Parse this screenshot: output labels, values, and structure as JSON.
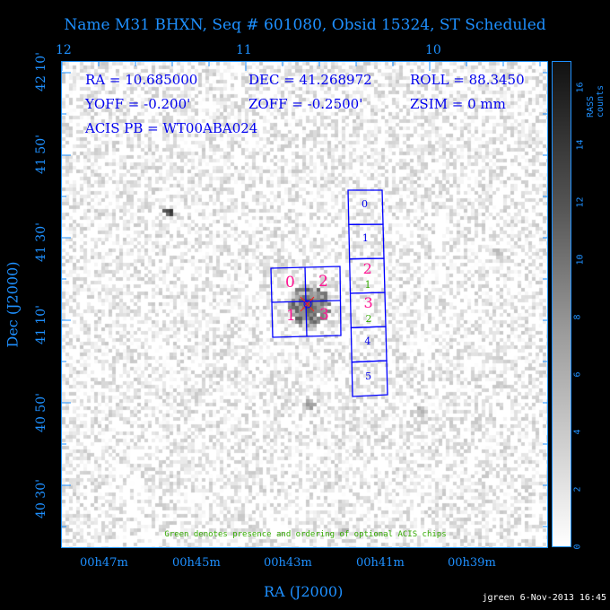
{
  "title": "Name M31 BHXN, Seq # 601080, Obsid 15324, ST Scheduled",
  "info": {
    "ra": "RA = 10.685000",
    "dec": "DEC = 41.268972",
    "roll": "ROLL = 88.3450",
    "yoff": "YOFF =  -0.200'",
    "zoff": "ZOFF = -0.2500'",
    "zsim": "ZSIM = 0 mm",
    "acis_pb": "ACIS PB = WT00ABA024"
  },
  "note": "Green denotes presence and ordering of optional ACIS chips",
  "credit": "jgreen  6-Nov-2013 16:45",
  "colors": {
    "axis": "#1e90ff",
    "chip_outline": "#0000ff",
    "acis_i_label": "#ff1493",
    "optional": "#33aa00"
  },
  "acis_i_chips": [
    "0",
    "2",
    "1",
    "3"
  ],
  "acis_s_chips": [
    "0",
    "1",
    "2",
    "3",
    "4",
    "5"
  ],
  "acis_s_optional": {
    "2": "1",
    "3": "2"
  },
  "chart_data": {
    "type": "heatmap",
    "xlabel": "RA (J2000)",
    "ylabel": "Dec (J2000)",
    "x_ticks": [
      "00h47m",
      "00h45m",
      "00h43m",
      "00h41m",
      "00h39m"
    ],
    "x_top_ticks": [
      "12",
      "11",
      "10"
    ],
    "y_ticks": [
      "42 10'",
      "41 50'",
      "41 30'",
      "41 10'",
      "40 50'",
      "40 30'"
    ],
    "colorbar": {
      "label": "RASS counts",
      "ticks": [
        "0",
        "2",
        "4",
        "6",
        "8",
        "10",
        "12",
        "14",
        "16"
      ],
      "range": [
        0,
        17
      ],
      "colormap": "gray reversed"
    }
  }
}
